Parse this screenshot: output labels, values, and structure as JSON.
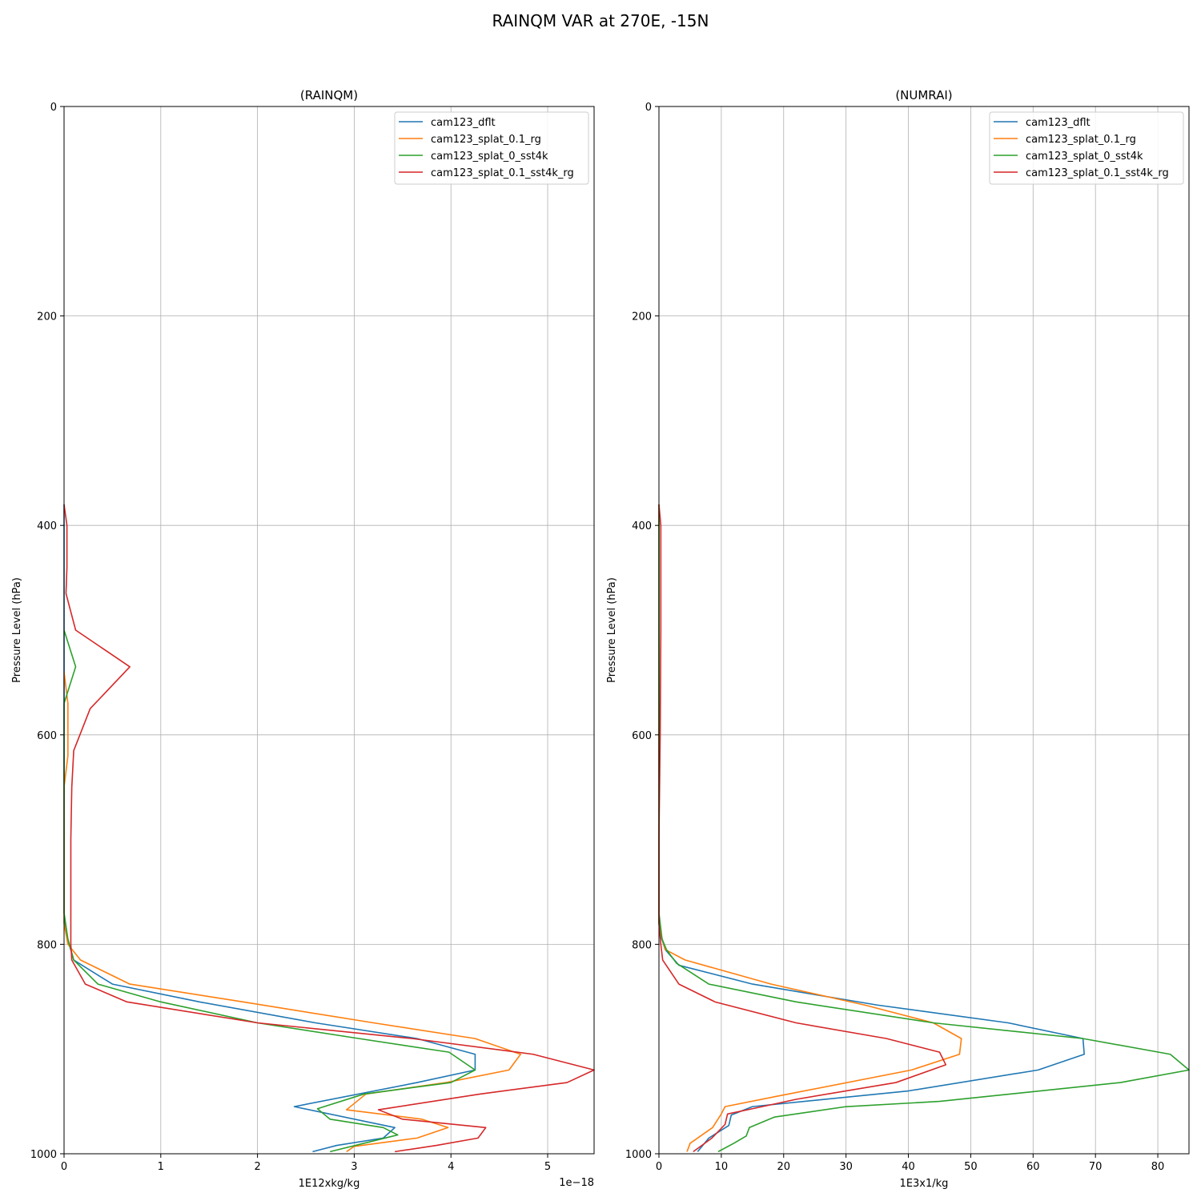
{
  "figure": {
    "title": "RAINQM VAR at 270E, -15N"
  },
  "chart_data": [
    {
      "type": "line",
      "title": "(RAINQM)",
      "xlabel": "1E12xkg/kg",
      "ylabel": "Pressure Level (hPa)",
      "x_offset_text": "1e−18",
      "xlim": [
        0,
        5.48
      ],
      "ylim": [
        1000,
        0
      ],
      "x_ticks": [
        0,
        1,
        2,
        3,
        4,
        5
      ],
      "y_ticks": [
        0,
        200,
        400,
        600,
        800,
        1000
      ],
      "grid": true,
      "legend_position": "upper right",
      "series": [
        {
          "name": "cam123_dflt",
          "color": "#1f77b4",
          "points": [
            [
              0,
              380
            ],
            [
              0,
              500
            ],
            [
              0,
              600
            ],
            [
              0,
              700
            ],
            [
              0,
              770
            ],
            [
              0.02,
              790
            ],
            [
              0.1,
              815
            ],
            [
              0.5,
              838
            ],
            [
              1.4,
              855
            ],
            [
              2.6,
              875
            ],
            [
              3.65,
              890
            ],
            [
              4.25,
              905
            ],
            [
              4.25,
              920
            ],
            [
              3.65,
              932
            ],
            [
              2.38,
              955
            ],
            [
              3.42,
              975
            ],
            [
              3.3,
              985
            ],
            [
              2.82,
              992
            ],
            [
              2.57,
              998
            ]
          ]
        },
        {
          "name": "cam123_splat_0.1_rg",
          "color": "#ff7f0e",
          "points": [
            [
              0,
              540
            ],
            [
              0.04,
              570
            ],
            [
              0.04,
              620
            ],
            [
              0,
              650
            ],
            [
              0,
              700
            ],
            [
              0,
              780
            ],
            [
              0.04,
              800
            ],
            [
              0.17,
              815
            ],
            [
              0.68,
              838
            ],
            [
              1.85,
              855
            ],
            [
              3.2,
              875
            ],
            [
              4.25,
              890
            ],
            [
              4.72,
              905
            ],
            [
              4.6,
              920
            ],
            [
              3.95,
              932
            ],
            [
              3.12,
              943
            ],
            [
              2.92,
              958
            ],
            [
              3.7,
              967
            ],
            [
              3.97,
              975
            ],
            [
              3.65,
              985
            ],
            [
              3.0,
              993
            ],
            [
              2.92,
              998
            ]
          ]
        },
        {
          "name": "cam123_splat_0_sst4k",
          "color": "#2ca02c",
          "points": [
            [
              0,
              500
            ],
            [
              0.12,
              535
            ],
            [
              0,
              570
            ],
            [
              0,
              620
            ],
            [
              0,
              700
            ],
            [
              0,
              770
            ],
            [
              0.04,
              795
            ],
            [
              0.1,
              815
            ],
            [
              0.35,
              838
            ],
            [
              1.0,
              855
            ],
            [
              2.0,
              875
            ],
            [
              3.05,
              890
            ],
            [
              3.98,
              903
            ],
            [
              4.25,
              920
            ],
            [
              4.0,
              932
            ],
            [
              3.1,
              943
            ],
            [
              2.62,
              957
            ],
            [
              2.75,
              967
            ],
            [
              3.3,
              975
            ],
            [
              3.45,
              982
            ],
            [
              3.1,
              990
            ],
            [
              2.75,
              998
            ]
          ]
        },
        {
          "name": "cam123_splat_0.1_sst4k_rg",
          "color": "#d62728",
          "points": [
            [
              0,
              380
            ],
            [
              0.03,
              400
            ],
            [
              0.03,
              440
            ],
            [
              0.02,
              465
            ],
            [
              0.12,
              500
            ],
            [
              0.68,
              535
            ],
            [
              0.27,
              575
            ],
            [
              0.1,
              615
            ],
            [
              0.08,
              650
            ],
            [
              0.07,
              700
            ],
            [
              0.07,
              780
            ],
            [
              0.07,
              800
            ],
            [
              0.08,
              815
            ],
            [
              0.22,
              838
            ],
            [
              0.65,
              855
            ],
            [
              2.0,
              875
            ],
            [
              3.6,
              890
            ],
            [
              4.85,
              905
            ],
            [
              5.48,
              920
            ],
            [
              5.2,
              932
            ],
            [
              4.3,
              943
            ],
            [
              3.25,
              958
            ],
            [
              3.5,
              967
            ],
            [
              4.36,
              975
            ],
            [
              4.28,
              985
            ],
            [
              3.85,
              992
            ],
            [
              3.42,
              998
            ]
          ]
        }
      ]
    },
    {
      "type": "line",
      "title": "(NUMRAI)",
      "xlabel": "1E3x1/kg",
      "ylabel": "Pressure Level (hPa)",
      "xlim": [
        0,
        85
      ],
      "ylim": [
        1000,
        0
      ],
      "x_ticks": [
        0,
        10,
        20,
        30,
        40,
        50,
        60,
        70,
        80
      ],
      "y_ticks": [
        0,
        200,
        400,
        600,
        800,
        1000
      ],
      "grid": true,
      "legend_position": "upper right",
      "series": [
        {
          "name": "cam123_dflt",
          "color": "#1f77b4",
          "points": [
            [
              0,
              380
            ],
            [
              0,
              500
            ],
            [
              0,
              600
            ],
            [
              0,
              700
            ],
            [
              0,
              780
            ],
            [
              0.2,
              790
            ],
            [
              1.0,
              805
            ],
            [
              3.2,
              820
            ],
            [
              15.0,
              838
            ],
            [
              35.0,
              858
            ],
            [
              56.0,
              875
            ],
            [
              68.0,
              890
            ],
            [
              68.2,
              905
            ],
            [
              60.8,
              920
            ],
            [
              40.0,
              940
            ],
            [
              15.0,
              955
            ],
            [
              11.6,
              963
            ],
            [
              11.2,
              973
            ],
            [
              8.0,
              985
            ],
            [
              6.2,
              998
            ]
          ]
        },
        {
          "name": "cam123_splat_0.1_rg",
          "color": "#ff7f0e",
          "points": [
            [
              0,
              380
            ],
            [
              0,
              500
            ],
            [
              0,
              600
            ],
            [
              0,
              700
            ],
            [
              0,
              780
            ],
            [
              0.3,
              790
            ],
            [
              1.0,
              805
            ],
            [
              4.2,
              815
            ],
            [
              18.0,
              838
            ],
            [
              33.0,
              858
            ],
            [
              44.0,
              875
            ],
            [
              48.5,
              890
            ],
            [
              48.2,
              905
            ],
            [
              40.5,
              920
            ],
            [
              19.0,
              945
            ],
            [
              10.6,
              955
            ],
            [
              10.0,
              962
            ],
            [
              8.6,
              975
            ],
            [
              5.0,
              990
            ],
            [
              4.5,
              998
            ]
          ]
        },
        {
          "name": "cam123_splat_0_sst4k",
          "color": "#2ca02c",
          "points": [
            [
              0,
              380
            ],
            [
              0,
              500
            ],
            [
              0,
              600
            ],
            [
              0,
              700
            ],
            [
              0,
              770
            ],
            [
              0.5,
              795
            ],
            [
              1.2,
              805
            ],
            [
              2.8,
              818
            ],
            [
              8.0,
              838
            ],
            [
              22.0,
              855
            ],
            [
              44.0,
              875
            ],
            [
              68.0,
              890
            ],
            [
              82.0,
              905
            ],
            [
              85.0,
              920
            ],
            [
              74.0,
              932
            ],
            [
              45.0,
              950
            ],
            [
              30.0,
              955
            ],
            [
              18.5,
              965
            ],
            [
              14.5,
              975
            ],
            [
              14.0,
              983
            ],
            [
              12.0,
              990
            ],
            [
              9.5,
              998
            ]
          ]
        },
        {
          "name": "cam123_splat_0.1_sst4k_rg",
          "color": "#d62728",
          "points": [
            [
              0,
              380
            ],
            [
              0.3,
              400
            ],
            [
              0.3,
              450
            ],
            [
              0.3,
              500
            ],
            [
              0.2,
              600
            ],
            [
              0,
              700
            ],
            [
              0,
              780
            ],
            [
              0.3,
              800
            ],
            [
              0.6,
              815
            ],
            [
              3.2,
              838
            ],
            [
              9.0,
              855
            ],
            [
              22.0,
              875
            ],
            [
              36.5,
              890
            ],
            [
              45.0,
              903
            ],
            [
              46.0,
              915
            ],
            [
              38.0,
              932
            ],
            [
              22.0,
              948
            ],
            [
              15.0,
              957
            ],
            [
              11.0,
              962
            ],
            [
              10.6,
              972
            ],
            [
              8.5,
              985
            ],
            [
              5.5,
              998
            ]
          ]
        }
      ]
    }
  ]
}
